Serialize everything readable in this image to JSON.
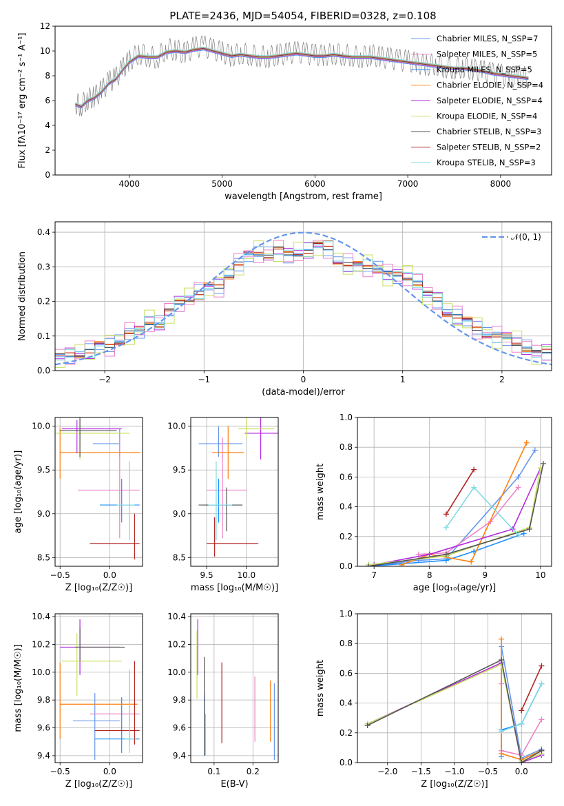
{
  "figure_title": "PLATE=2436, MJD=54054, FIBERID=0328, z=0.108",
  "colors": [
    "#6495ed",
    "#ee82c8",
    "#1e90ff",
    "#ff7f0e",
    "#b22be0",
    "#c8e060",
    "#555555",
    "#b22222",
    "#7fdbe0"
  ],
  "chart_data": [
    {
      "id": "spectrum",
      "type": "line",
      "title": "PLATE=2436, MJD=54054, FIBERID=0328, z=0.108",
      "xlabel": "wavelength [Angstrom, rest frame]",
      "ylabel": "Flux [fλ10⁻¹⁷ erg cm⁻² s⁻¹ A⁻¹]",
      "xlim": [
        3200,
        8550
      ],
      "ylim": [
        0,
        12
      ],
      "xticks": [
        "4000",
        "5000",
        "6000",
        "7000",
        "8000"
      ],
      "yticks": [
        "0",
        "2",
        "4",
        "6",
        "8",
        "10",
        "12"
      ],
      "grid": false,
      "legend_position": "top-right",
      "data_line_color": "#808080",
      "data_x": [
        3420,
        3480,
        3550,
        3620,
        3700,
        3780,
        3850,
        3930,
        4000,
        4100,
        4200,
        4300,
        4400,
        4500,
        4600,
        4700,
        4800,
        4900,
        5000,
        5100,
        5200,
        5300,
        5400,
        5500,
        5600,
        5700,
        5800,
        5900,
        6000,
        6100,
        6200,
        6300,
        6400,
        6500,
        6600,
        6700,
        6800,
        6900,
        7000,
        7100,
        7200,
        7300,
        7400,
        7500,
        7600,
        7700,
        7800,
        7900,
        8000,
        8100,
        8200,
        8300
      ],
      "data_y": [
        5.8,
        5.6,
        6.1,
        6.3,
        6.8,
        7.5,
        7.8,
        8.6,
        9.2,
        9.8,
        9.6,
        9.4,
        10.2,
        10.1,
        9.8,
        10.3,
        10.4,
        10.1,
        9.9,
        9.6,
        9.8,
        9.7,
        9.6,
        9.5,
        9.7,
        9.8,
        9.9,
        9.8,
        9.7,
        9.6,
        9.8,
        9.7,
        9.6,
        9.5,
        9.7,
        9.5,
        9.4,
        9.3,
        9.2,
        9.0,
        8.9,
        8.9,
        8.7,
        8.6,
        8.7,
        8.5,
        8.4,
        8.2,
        8.1,
        7.9,
        8.0,
        7.8
      ],
      "model_y": [
        5.7,
        5.5,
        6.0,
        6.2,
        6.7,
        7.4,
        7.7,
        8.5,
        9.1,
        9.6,
        9.5,
        9.5,
        9.9,
        10.0,
        9.9,
        10.1,
        10.2,
        10.0,
        9.8,
        9.6,
        9.7,
        9.6,
        9.5,
        9.5,
        9.6,
        9.7,
        9.8,
        9.7,
        9.6,
        9.6,
        9.7,
        9.6,
        9.5,
        9.5,
        9.5,
        9.4,
        9.3,
        9.2,
        9.1,
        9.0,
        8.9,
        8.8,
        8.7,
        8.6,
        8.6,
        8.5,
        8.4,
        8.2,
        8.1,
        8.0,
        7.9,
        7.8
      ],
      "legend": [
        "Chabrier MILES, N_SSP=7",
        "Salpeter MILES, N_SSP=5",
        "Kroupa MILES, N_SSP=5",
        "Chabrier ELODIE, N_SSP=4",
        "Salpeter ELODIE, N_SSP=4",
        "Kroupa ELODIE, N_SSP=4",
        "Chabrier STELIB, N_SSP=3",
        "Salpeter STELIB, N_SSP=2",
        "Kroupa STELIB, N_SSP=3"
      ]
    },
    {
      "id": "residuals",
      "type": "line",
      "xlabel": "(data-model)/error",
      "ylabel": "Normed distribution",
      "xlim": [
        -2.5,
        2.5
      ],
      "ylim": [
        0,
        0.43
      ],
      "xticks": [
        "−2",
        "−1",
        "0",
        "1",
        "2"
      ],
      "yticks": [
        "0.0",
        "0.1",
        "0.2",
        "0.3",
        "0.4"
      ],
      "grid": true,
      "legend_position": "top-right",
      "legend": [
        "𝒩(0, 1)"
      ],
      "bin_width": 0.1,
      "hist_x": [
        -2.5,
        -2.4,
        -2.3,
        -2.2,
        -2.1,
        -2.0,
        -1.9,
        -1.8,
        -1.7,
        -1.6,
        -1.5,
        -1.4,
        -1.3,
        -1.2,
        -1.1,
        -1.0,
        -0.9,
        -0.8,
        -0.7,
        -0.6,
        -0.5,
        -0.4,
        -0.3,
        -0.2,
        -0.1,
        0.0,
        0.1,
        0.2,
        0.3,
        0.4,
        0.5,
        0.6,
        0.7,
        0.8,
        0.9,
        1.0,
        1.1,
        1.2,
        1.3,
        1.4,
        1.5,
        1.6,
        1.7,
        1.8,
        1.9,
        2.0,
        2.1,
        2.2,
        2.3,
        2.4
      ],
      "hist_y": [
        0.04,
        0.04,
        0.05,
        0.06,
        0.07,
        0.07,
        0.09,
        0.11,
        0.11,
        0.14,
        0.14,
        0.17,
        0.19,
        0.21,
        0.23,
        0.24,
        0.24,
        0.28,
        0.31,
        0.33,
        0.34,
        0.34,
        0.35,
        0.33,
        0.34,
        0.35,
        0.36,
        0.35,
        0.32,
        0.31,
        0.3,
        0.3,
        0.3,
        0.28,
        0.27,
        0.27,
        0.26,
        0.22,
        0.2,
        0.17,
        0.16,
        0.14,
        0.12,
        0.11,
        0.1,
        0.09,
        0.08,
        0.07,
        0.05,
        0.05
      ]
    },
    {
      "id": "age_vs_Z",
      "type": "scatter",
      "xlabel": "Z [log₁₀(Z/Z☉)]",
      "ylabel": "age  [log₁₀(age/yr)]",
      "xlim": [
        -0.55,
        0.33
      ],
      "ylim": [
        8.4,
        10.1
      ],
      "xticks": [
        "−0.5",
        "0.0"
      ],
      "yticks": [
        "8.5",
        "9.0",
        "9.5",
        "10.0"
      ],
      "grid": true,
      "points": [
        {
          "x": 0.1,
          "y": 9.8,
          "xerr": [
            0.27,
            0.0
          ],
          "yerr": [
            0.15,
            0.17
          ]
        },
        {
          "x": 0.1,
          "y": 9.27,
          "xerr": [
            0.42,
            0.2
          ],
          "yerr": [
            0.55,
            0.6
          ]
        },
        {
          "x": 0.12,
          "y": 9.1,
          "xerr": [
            0.22,
            0.18
          ],
          "yerr": [
            0.2,
            0.3
          ]
        },
        {
          "x": -0.5,
          "y": 9.7,
          "xerr": [
            0.0,
            0.81
          ],
          "yerr": [
            0.3,
            0.28
          ]
        },
        {
          "x": -0.33,
          "y": 9.97,
          "xerr": [
            0.15,
            0.45
          ],
          "yerr": [
            0.28,
            0.1
          ]
        },
        {
          "x": -0.3,
          "y": 9.92,
          "xerr": [
            0.25,
            0.5
          ],
          "yerr": [
            0.3,
            0.15
          ]
        },
        {
          "x": -0.3,
          "y": 9.95,
          "xerr": [
            0.2,
            0.37
          ],
          "yerr": [
            0.3,
            0.15
          ]
        },
        {
          "x": 0.25,
          "y": 8.66,
          "xerr": [
            0.45,
            0.05
          ],
          "yerr": [
            0.18,
            0.34
          ]
        },
        {
          "x": 0.2,
          "y": 9.1,
          "xerr": [
            0.13,
            0.05
          ],
          "yerr": [
            0.4,
            0.5
          ]
        }
      ]
    },
    {
      "id": "age_vs_mass",
      "type": "scatter",
      "xlabel": "mass [log₁₀(M/M☉)]",
      "ylabel": "",
      "xlim": [
        9.3,
        10.4
      ],
      "ylim": [
        8.4,
        10.1
      ],
      "xticks": [
        "9.5",
        "10.0"
      ],
      "yticks": [
        "8.5",
        "9.0",
        "9.5",
        "10.0"
      ],
      "grid": true,
      "points": [
        {
          "x": 9.65,
          "y": 9.8,
          "xerr": [
            0.25,
            0.3
          ],
          "yerr": [
            0.15,
            0.2
          ]
        },
        {
          "x": 9.7,
          "y": 9.27,
          "xerr": [
            0.2,
            0.3
          ],
          "yerr": [
            0.55,
            0.6
          ]
        },
        {
          "x": 9.65,
          "y": 9.1,
          "xerr": [
            0.2,
            0.3
          ],
          "yerr": [
            0.2,
            0.3
          ]
        },
        {
          "x": 9.77,
          "y": 9.7,
          "xerr": [
            0.2,
            0.2
          ],
          "yerr": [
            0.3,
            0.3
          ]
        },
        {
          "x": 10.18,
          "y": 9.92,
          "xerr": [
            0.2,
            0.25
          ],
          "yerr": [
            0.3,
            0.3
          ]
        },
        {
          "x": 10.0,
          "y": 9.97,
          "xerr": [
            0.1,
            0.35
          ],
          "yerr": [
            0.1,
            0.15
          ]
        },
        {
          "x": 9.75,
          "y": 9.1,
          "xerr": [
            0.35,
            0.2
          ],
          "yerr": [
            0.3,
            0.2
          ]
        },
        {
          "x": 9.6,
          "y": 8.66,
          "xerr": [
            0.1,
            0.55
          ],
          "yerr": [
            0.15,
            0.3
          ]
        },
        {
          "x": 9.62,
          "y": 9.1,
          "xerr": [
            0.1,
            0.2
          ],
          "yerr": [
            0.4,
            0.5
          ]
        }
      ]
    },
    {
      "id": "weight_vs_age",
      "type": "line",
      "xlabel": "age  [log₁₀(age/yr)]",
      "ylabel": "mass weight",
      "xlim": [
        6.7,
        10.2
      ],
      "ylim": [
        0,
        1.0
      ],
      "xticks": [
        "7",
        "8",
        "9",
        "10"
      ],
      "yticks": [
        "0.0",
        "0.2",
        "0.4",
        "0.6",
        "0.8",
        "1.0"
      ],
      "grid": true,
      "series": [
        {
          "x": [
            6.9,
            7.8,
            8.3,
            9.6,
            9.9
          ],
          "y": [
            0.0,
            0.04,
            0.05,
            0.6,
            0.78
          ]
        },
        {
          "x": [
            7.8,
            8.3,
            9.1,
            9.6
          ],
          "y": [
            0.08,
            0.09,
            0.3,
            0.53
          ]
        },
        {
          "x": [
            6.9,
            8.3,
            8.8,
            9.7
          ],
          "y": [
            0.0,
            0.04,
            0.1,
            0.22
          ]
        },
        {
          "x": [
            7.5,
            8.0,
            8.75,
            9.75
          ],
          "y": [
            0.01,
            0.08,
            0.03,
            0.83
          ]
        },
        {
          "x": [
            7.0,
            8.0,
            9.5,
            10.0
          ],
          "y": [
            0.01,
            0.08,
            0.25,
            0.66
          ]
        },
        {
          "x": [
            6.9,
            8.3,
            9.8,
            10.0
          ],
          "y": [
            0.01,
            0.07,
            0.26,
            0.66
          ]
        },
        {
          "x": [
            6.9,
            8.3,
            9.8,
            10.05
          ],
          "y": [
            0.0,
            0.08,
            0.25,
            0.69
          ]
        },
        {
          "x": [
            8.3,
            8.8
          ],
          "y": [
            0.35,
            0.65
          ]
        },
        {
          "x": [
            8.3,
            8.8,
            9.6
          ],
          "y": [
            0.26,
            0.53,
            0.21
          ]
        }
      ]
    },
    {
      "id": "mass_vs_Z",
      "type": "scatter",
      "xlabel": "Z [log₁₀(Z/Z☉)]",
      "ylabel": "mass [log₁₀(M/M☉)]",
      "xlim": [
        -0.55,
        0.33
      ],
      "ylim": [
        9.35,
        10.42
      ],
      "xticks": [
        "−0.5",
        "0.0"
      ],
      "yticks": [
        "9.4",
        "9.6",
        "9.8",
        "10.0",
        "10.2",
        "10.4"
      ],
      "grid": true,
      "points": [
        {
          "x": -0.15,
          "y": 9.65,
          "xerr": [
            0.22,
            0.25
          ],
          "yerr": [
            0.28,
            0.2
          ]
        },
        {
          "x": 0.2,
          "y": 9.7,
          "xerr": [
            0.4,
            0.1
          ],
          "yerr": [
            0.2,
            0.3
          ]
        },
        {
          "x": 0.12,
          "y": 9.52,
          "xerr": [
            0.27,
            0.18
          ],
          "yerr": [
            0.1,
            0.3
          ]
        },
        {
          "x": -0.5,
          "y": 9.77,
          "xerr": [
            0.0,
            0.78
          ],
          "yerr": [
            0.25,
            0.3
          ]
        },
        {
          "x": -0.3,
          "y": 10.18,
          "xerr": [
            0.2,
            0.4
          ],
          "yerr": [
            0.2,
            0.2
          ]
        },
        {
          "x": -0.33,
          "y": 10.08,
          "xerr": [
            0.15,
            0.45
          ],
          "yerr": [
            0.25,
            0.2
          ]
        },
        {
          "x": -0.3,
          "y": 10.18,
          "xerr": [
            0.05,
            0.45
          ],
          "yerr": [
            0.1,
            0.14
          ]
        },
        {
          "x": 0.25,
          "y": 9.58,
          "xerr": [
            0.4,
            0.05
          ],
          "yerr": [
            0.1,
            0.5
          ]
        },
        {
          "x": 0.2,
          "y": 9.52,
          "xerr": [
            0.05,
            0.05
          ],
          "yerr": [
            0.1,
            0.5
          ]
        }
      ]
    },
    {
      "id": "mass_vs_ebv",
      "type": "scatter",
      "xlabel": "E(B-V)",
      "ylabel": "",
      "xlim": [
        0.04,
        0.265
      ],
      "ylim": [
        9.35,
        10.42
      ],
      "xticks": [
        "0.1",
        "0.2"
      ],
      "yticks": [
        "9.4",
        "9.6",
        "9.8",
        "10.0",
        "10.2",
        "10.4"
      ],
      "grid": true,
      "points": [
        {
          "x": 0.255,
          "y": 9.65,
          "yerr": [
            0.28,
            0.27
          ]
        },
        {
          "x": 0.205,
          "y": 9.72,
          "yerr": [
            0.22,
            0.25
          ]
        },
        {
          "x": 0.075,
          "y": 9.6,
          "yerr": [
            0.2,
            0.25
          ]
        },
        {
          "x": 0.245,
          "y": 9.7,
          "yerr": [
            0.2,
            0.24
          ]
        },
        {
          "x": 0.058,
          "y": 10.18,
          "yerr": [
            0.2,
            0.2
          ]
        },
        {
          "x": 0.056,
          "y": 10.08,
          "yerr": [
            0.27,
            0.22
          ]
        },
        {
          "x": 0.075,
          "y": 9.7,
          "yerr": [
            0.3,
            0.41
          ]
        },
        {
          "x": 0.12,
          "y": 9.78,
          "yerr": [
            0.29,
            0.29
          ]
        },
        {
          "x": 0.078,
          "y": 9.5,
          "yerr": [
            0.1,
            0.2
          ]
        }
      ]
    },
    {
      "id": "weight_vs_Z",
      "type": "line",
      "xlabel": "Z [log₁₀(Z/Z☉)]",
      "ylabel": "mass weight",
      "xlim": [
        -2.45,
        0.45
      ],
      "ylim": [
        0,
        1.0
      ],
      "xticks": [
        "−2.0",
        "−1.5",
        "−1.0",
        "−0.5",
        "0.0"
      ],
      "yticks": [
        "0.0",
        "0.2",
        "0.4",
        "0.6",
        "0.8",
        "1.0"
      ],
      "grid": true,
      "series": [
        {
          "x": [
            -0.3,
            -0.3,
            0.0,
            0.3
          ],
          "y": [
            0.04,
            0.78,
            0.03,
            0.09
          ]
        },
        {
          "x": [
            -0.3,
            -0.3,
            0.0,
            0.3
          ],
          "y": [
            0.53,
            0.08,
            0.05,
            0.29
          ]
        },
        {
          "x": [
            -0.3,
            0.0,
            0.3
          ],
          "y": [
            0.22,
            0.26,
            0.53
          ]
        },
        {
          "x": [
            -0.3,
            -0.3,
            0.0,
            0.3
          ],
          "y": [
            0.83,
            0.06,
            0.02,
            0.08
          ]
        },
        {
          "x": [
            -2.3,
            -0.3,
            0.0,
            0.3
          ],
          "y": [
            0.26,
            0.67,
            0.0,
            0.05
          ]
        },
        {
          "x": [
            -2.3,
            -0.3,
            0.0,
            0.3
          ],
          "y": [
            0.26,
            0.66,
            0.01,
            0.06
          ]
        },
        {
          "x": [
            -2.3,
            -0.3,
            0.0,
            0.3
          ],
          "y": [
            0.25,
            0.69,
            0.0,
            0.08
          ]
        },
        {
          "x": [
            0.0,
            0.3
          ],
          "y": [
            0.35,
            0.65
          ]
        },
        {
          "x": [
            -0.3,
            0.0,
            0.3
          ],
          "y": [
            0.21,
            0.26,
            0.53
          ]
        }
      ]
    }
  ]
}
